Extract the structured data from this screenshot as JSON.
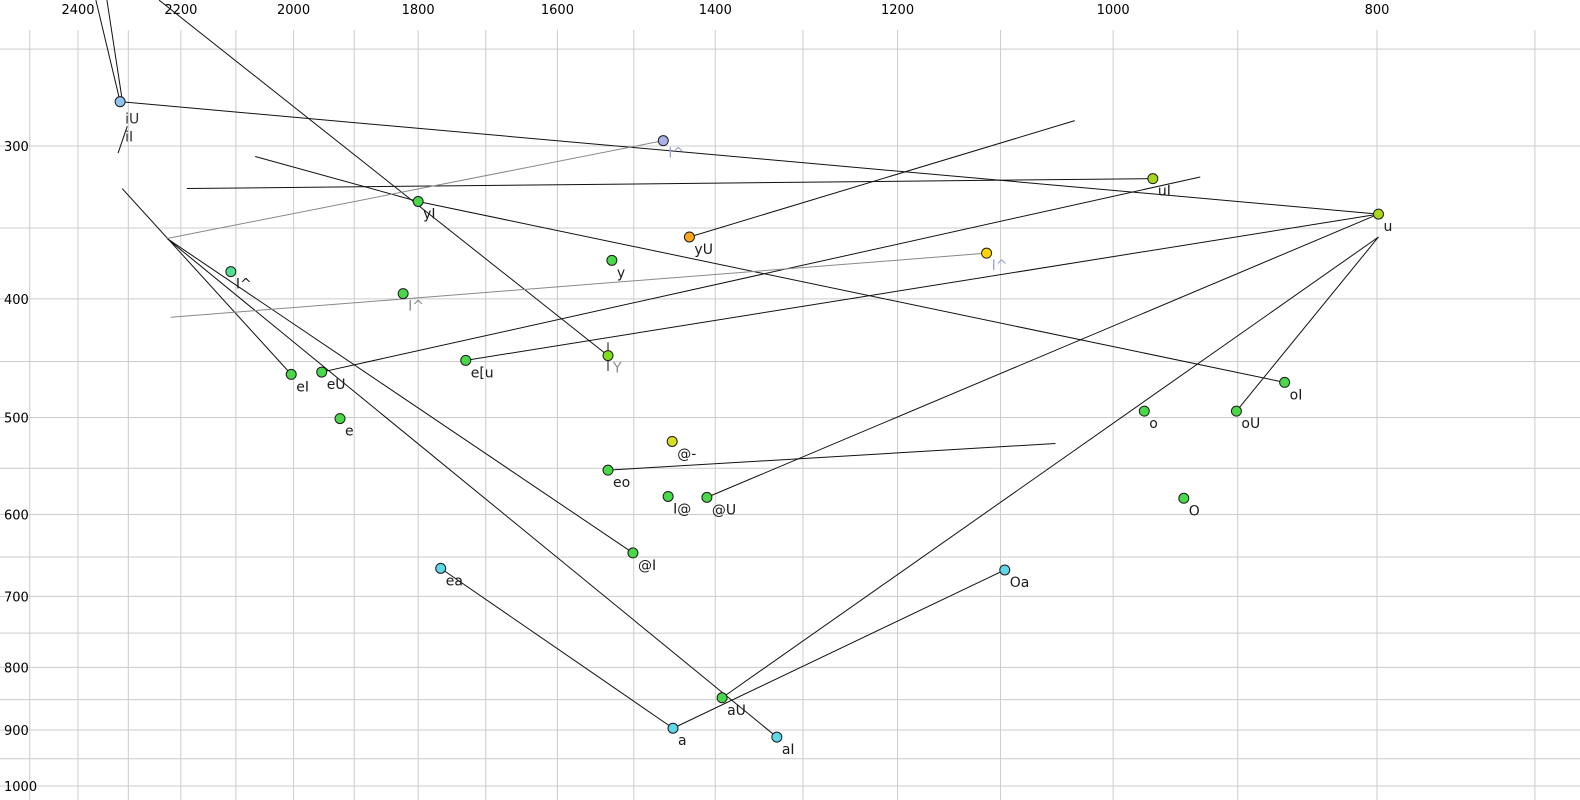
{
  "chart_data": {
    "type": "scatter",
    "title": "",
    "description": "Vowel formant plot (F2 reversed on top axis, F1 reversed on left axis) with diphthong trajectory lines",
    "grid": true,
    "legend": "none",
    "x_axis": {
      "side": "top",
      "scale": "log",
      "reversed": true,
      "ticks": [
        "2400",
        "2200",
        "2000",
        "1800",
        "1600",
        "1400",
        "1200",
        "1000",
        "800"
      ],
      "tick_values": [
        2400,
        2200,
        2000,
        1800,
        1600,
        1400,
        1200,
        1000,
        800
      ],
      "grid_values": [
        2500,
        2400,
        2300,
        2200,
        2100,
        2000,
        1900,
        1800,
        1700,
        1600,
        1500,
        1400,
        1300,
        1200,
        1100,
        1000,
        900,
        800,
        700
      ],
      "range": [
        2500,
        700
      ]
    },
    "y_axis": {
      "side": "left",
      "scale": "log",
      "reversed": true,
      "ticks": [
        "300",
        "400",
        "500",
        "600",
        "700",
        "800",
        "900",
        "1000"
      ],
      "tick_values": [
        300,
        400,
        500,
        600,
        700,
        800,
        900,
        1000
      ],
      "grid_values": [
        250,
        300,
        350,
        400,
        450,
        500,
        550,
        600,
        650,
        700,
        750,
        800,
        850,
        900,
        950,
        1000
      ],
      "range": [
        240,
        1010
      ]
    },
    "colors": {
      "green": "#49d849",
      "mint": "#4fdf8f",
      "cyan": "#5fd7e8",
      "blue": "#90c4ee",
      "lavender": "#a9b2e8",
      "orange": "#ffa71c",
      "gold": "#ffd500",
      "yellow": "#d9e021",
      "yellowgreen": "#a6d71c",
      "chartreuse": "#7fdc1f",
      "label_black": "#1a1a1a",
      "label_gray": "#8a8a8a",
      "label_lavender": "#9aa3de",
      "line_black": "#111111",
      "line_gray": "#888888",
      "grid_gray": "#cccccc"
    },
    "points": [
      {
        "label": "iU",
        "label2": "iI",
        "f2": 2316,
        "f1": 276,
        "color": "#90c4ee",
        "label_color": "#333333"
      },
      {
        "label": "yI",
        "f2": 1800,
        "f1": 333,
        "color": "#49d849",
        "label_color": "#1a1a1a"
      },
      {
        "label": "I^",
        "f2": 1463,
        "f1": 297,
        "color": "#a9b2e8",
        "label_color": "#9aa3de"
      },
      {
        "label": "uI",
        "f2": 967,
        "f1": 319,
        "color": "#a6d71c",
        "label_color": "#1a1a1a"
      },
      {
        "label": "u",
        "f2": 799,
        "f1": 341,
        "color": "#a6d71c",
        "label_color": "#1a1a1a"
      },
      {
        "label": "yU",
        "f2": 1431,
        "f1": 356,
        "color": "#ffa71c",
        "label_color": "#1a1a1a"
      },
      {
        "label": "y",
        "f2": 1528,
        "f1": 372,
        "color": "#49d849",
        "label_color": "#1a1a1a"
      },
      {
        "label": "I^",
        "f2": 1113,
        "f1": 367,
        "color": "#ffd500",
        "label_color": "#9aa3de"
      },
      {
        "label": "I^",
        "f2": 2109,
        "f1": 380,
        "color": "#4fdf8f",
        "label_color": "#1a1a1a"
      },
      {
        "label": "I^",
        "f2": 1823,
        "f1": 396,
        "color": "#49d849",
        "label_color": "#8a8a8a"
      },
      {
        "label": "e[u",
        "f2": 1729,
        "f1": 449,
        "color": "#49d849",
        "label_color": "#1a1a1a"
      },
      {
        "label": "Y",
        "f2": 1533,
        "f1": 445,
        "color": "#7fdc1f",
        "label_color": "#8a8a8a"
      },
      {
        "label": "eI",
        "f2": 2004,
        "f1": 461,
        "color": "#49d849",
        "label_color": "#1a1a1a"
      },
      {
        "label": "eU",
        "f2": 1953,
        "f1": 459,
        "color": "#49d849",
        "label_color": "#1a1a1a"
      },
      {
        "label": "e",
        "f2": 1923,
        "f1": 501,
        "color": "#49d849",
        "label_color": "#1a1a1a"
      },
      {
        "label": "oI",
        "f2": 865,
        "f1": 468,
        "color": "#49d849",
        "label_color": "#1a1a1a"
      },
      {
        "label": "o",
        "f2": 974,
        "f1": 494,
        "color": "#49d849",
        "label_color": "#1a1a1a"
      },
      {
        "label": "oU",
        "f2": 901,
        "f1": 494,
        "color": "#49d849",
        "label_color": "#1a1a1a"
      },
      {
        "label": "@-",
        "f2": 1452,
        "f1": 523,
        "color": "#d9e021",
        "label_color": "#1a1a1a"
      },
      {
        "label": "eo",
        "f2": 1533,
        "f1": 552,
        "color": "#49d849",
        "label_color": "#1a1a1a"
      },
      {
        "label": "I@",
        "f2": 1457,
        "f1": 580,
        "color": "#49d849",
        "label_color": "#1a1a1a"
      },
      {
        "label": "@U",
        "f2": 1410,
        "f1": 581,
        "color": "#49d849",
        "label_color": "#1a1a1a"
      },
      {
        "label": "O",
        "f2": 942,
        "f1": 582,
        "color": "#49d849",
        "label_color": "#1a1a1a"
      },
      {
        "label": "@I",
        "f2": 1501,
        "f1": 645,
        "color": "#49d849",
        "label_color": "#1a1a1a"
      },
      {
        "label": "ea",
        "f2": 1766,
        "f1": 664,
        "color": "#5fd7e8",
        "label_color": "#1a1a1a"
      },
      {
        "label": "Oa",
        "f2": 1096,
        "f1": 666,
        "color": "#5fd7e8",
        "label_color": "#1a1a1a"
      },
      {
        "label": "aU",
        "f2": 1392,
        "f1": 847,
        "color": "#49d849",
        "label_color": "#1a1a1a"
      },
      {
        "label": "a",
        "f2": 1451,
        "f1": 897,
        "color": "#5fd7e8",
        "label_color": "#1a1a1a"
      },
      {
        "label": "aI",
        "f2": 1329,
        "f1": 912,
        "color": "#5fd7e8",
        "label_color": "#1a1a1a"
      }
    ],
    "lines": [
      {
        "name": "i-upper-a",
        "a": [
          2364,
          228
        ],
        "b": [
          2316,
          276
        ],
        "color": "#111111"
      },
      {
        "name": "i-upper-b",
        "a": [
          2342,
          228
        ],
        "b": [
          2312,
          275
        ],
        "color": "#111111"
      },
      {
        "name": "iU",
        "a": [
          2316,
          276
        ],
        "b": [
          799,
          341
        ],
        "color": "#111111"
      },
      {
        "name": "uI",
        "a": [
          967,
          319
        ],
        "b": [
          2189,
          325
        ],
        "color": "#111111"
      },
      {
        "name": "to-Y",
        "a": [
          2241,
          228
        ],
        "b": [
          1533,
          445
        ],
        "color": "#111111"
      },
      {
        "name": "yI",
        "a": [
          1800,
          333
        ],
        "b": [
          2066,
          306
        ],
        "color": "#111111"
      },
      {
        "name": "oI",
        "a": [
          865,
          468
        ],
        "b": [
          1800,
          333
        ],
        "color": "#111111"
      },
      {
        "name": "yU",
        "a": [
          1431,
          356
        ],
        "b": [
          1033,
          286
        ],
        "color": "#111111"
      },
      {
        "name": "eI",
        "a": [
          2004,
          461
        ],
        "b": [
          2312,
          325
        ],
        "color": "#111111"
      },
      {
        "name": "eU",
        "a": [
          1953,
          459
        ],
        "b": [
          929,
          318
        ],
        "color": "#111111"
      },
      {
        "name": "aI",
        "a": [
          1329,
          912
        ],
        "b": [
          2226,
          357
        ],
        "color": "#111111"
      },
      {
        "name": "@I",
        "a": [
          1501,
          645
        ],
        "b": [
          2226,
          357
        ],
        "color": "#111111"
      },
      {
        "name": "e[u",
        "a": [
          1729,
          449
        ],
        "b": [
          799,
          341
        ],
        "color": "#111111"
      },
      {
        "name": "@U",
        "a": [
          1410,
          581
        ],
        "b": [
          799,
          341
        ],
        "color": "#111111"
      },
      {
        "name": "aU",
        "a": [
          1392,
          847
        ],
        "b": [
          799,
          356
        ],
        "color": "#111111"
      },
      {
        "name": "oU",
        "a": [
          901,
          494
        ],
        "b": [
          799,
          356
        ],
        "color": "#111111"
      },
      {
        "name": "eo",
        "a": [
          1533,
          552
        ],
        "b": [
          1050,
          525
        ],
        "color": "#111111"
      },
      {
        "name": "ea",
        "a": [
          1766,
          664
        ],
        "b": [
          1451,
          897
        ],
        "color": "#111111"
      },
      {
        "name": "Oa",
        "a": [
          1096,
          666
        ],
        "b": [
          1451,
          897
        ],
        "color": "#111111"
      },
      {
        "name": "Y-tick",
        "a": [
          1533,
          434
        ],
        "b": [
          1533,
          458
        ],
        "color": "#111111"
      },
      {
        "name": "i-stroke",
        "a": [
          2302,
          289
        ],
        "b": [
          2320,
          304
        ],
        "color": "#111111"
      },
      {
        "name": "I-caret-gray-1",
        "a": [
          2226,
          357
        ],
        "b": [
          1463,
          297
        ],
        "color": "#888888"
      },
      {
        "name": "I-caret-gray-2",
        "a": [
          2219,
          414
        ],
        "b": [
          1113,
          367
        ],
        "color": "#888888"
      }
    ]
  }
}
